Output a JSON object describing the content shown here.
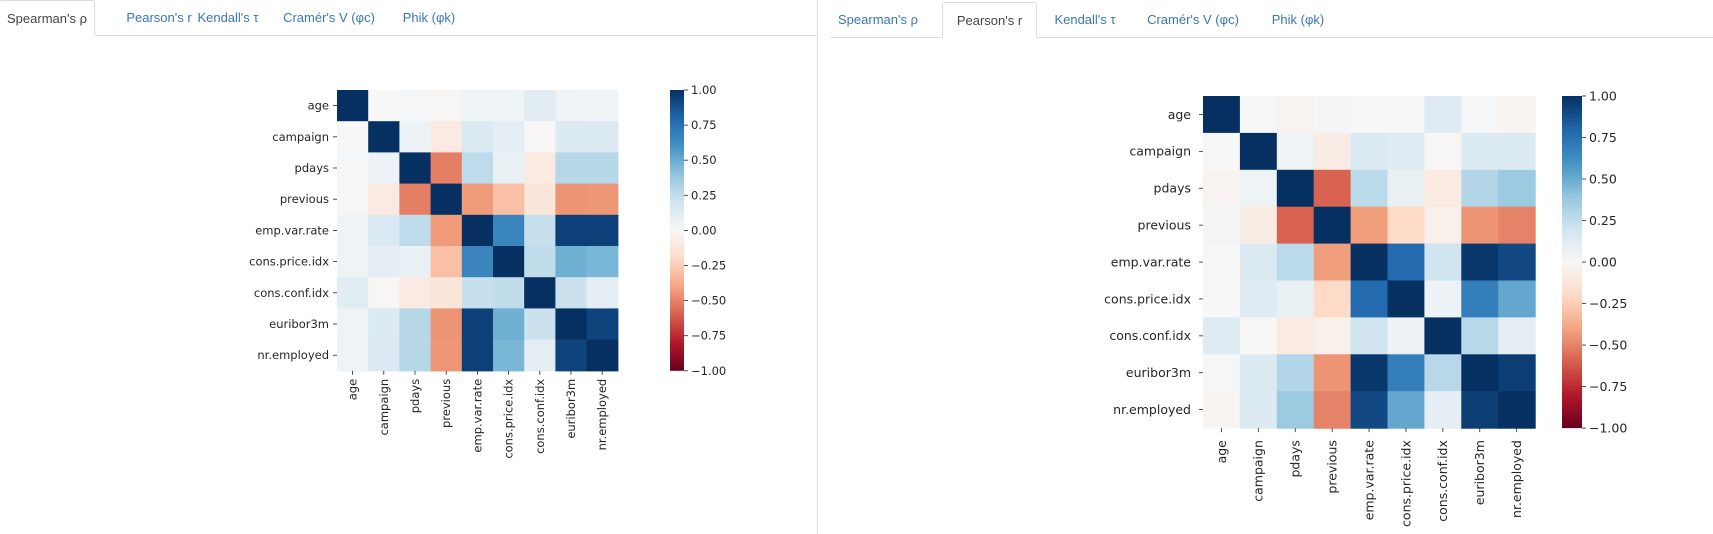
{
  "tabs": {
    "spearman": "Spearman's ρ",
    "pearson": "Pearson's r",
    "kendall": "Kendall's τ",
    "cramer": "Cramér's V (φc)",
    "phik": "Phik (φk)"
  },
  "colors": {
    "tab_link": "#3a76b5",
    "tab_active_text": "#444444",
    "colormap": "RdBu"
  },
  "chart_data": [
    {
      "type": "heatmap",
      "panel": "left",
      "active_tab": "spearman",
      "variables": [
        "age",
        "campaign",
        "pdays",
        "previous",
        "emp.var.rate",
        "cons.price.idx",
        "cons.conf.idx",
        "euribor3m",
        "nr.employed"
      ],
      "vmin": -1.0,
      "vmax": 1.0,
      "colorbar_ticks": [
        "1.00",
        "0.75",
        "0.50",
        "0.25",
        "0.00",
        "−0.25",
        "−0.50",
        "−0.75",
        "−1.00"
      ],
      "matrix": [
        [
          1.0,
          0.0,
          0.01,
          -0.01,
          0.05,
          0.05,
          0.11,
          0.05,
          0.04
        ],
        [
          0.0,
          1.0,
          0.06,
          -0.09,
          0.15,
          0.1,
          -0.01,
          0.14,
          0.15
        ],
        [
          0.01,
          0.06,
          1.0,
          -0.51,
          0.26,
          0.08,
          -0.09,
          0.29,
          0.29
        ],
        [
          -0.01,
          -0.09,
          -0.51,
          1.0,
          -0.43,
          -0.3,
          -0.12,
          -0.45,
          -0.44
        ],
        [
          0.05,
          0.15,
          0.26,
          -0.43,
          1.0,
          0.66,
          0.23,
          0.94,
          0.94
        ],
        [
          0.05,
          0.1,
          0.08,
          -0.3,
          0.66,
          1.0,
          0.25,
          0.49,
          0.46
        ],
        [
          0.11,
          -0.01,
          -0.09,
          -0.12,
          0.23,
          0.25,
          1.0,
          0.22,
          0.1
        ],
        [
          0.05,
          0.14,
          0.29,
          -0.45,
          0.94,
          0.49,
          0.22,
          1.0,
          0.93
        ],
        [
          0.04,
          0.15,
          0.29,
          -0.44,
          0.94,
          0.46,
          0.1,
          0.93,
          1.0
        ]
      ]
    },
    {
      "type": "heatmap",
      "panel": "right",
      "active_tab": "pearson",
      "variables": [
        "age",
        "campaign",
        "pdays",
        "previous",
        "emp.var.rate",
        "cons.price.idx",
        "cons.conf.idx",
        "euribor3m",
        "nr.employed"
      ],
      "vmin": -1.0,
      "vmax": 1.0,
      "colorbar_ticks": [
        "1.00",
        "0.75",
        "0.50",
        "0.25",
        "0.00",
        "−0.25",
        "−0.50",
        "−0.75",
        "−1.00"
      ],
      "matrix": [
        [
          1.0,
          0.0,
          -0.03,
          0.02,
          0.0,
          0.0,
          0.13,
          0.01,
          -0.02
        ],
        [
          0.0,
          1.0,
          0.05,
          -0.08,
          0.15,
          0.13,
          -0.01,
          0.14,
          0.14
        ],
        [
          -0.03,
          0.05,
          1.0,
          -0.59,
          0.27,
          0.08,
          -0.09,
          0.3,
          0.37
        ],
        [
          0.02,
          -0.08,
          -0.59,
          1.0,
          -0.42,
          -0.2,
          -0.05,
          -0.45,
          -0.5
        ],
        [
          0.0,
          0.15,
          0.27,
          -0.42,
          1.0,
          0.78,
          0.2,
          0.97,
          0.91
        ],
        [
          0.0,
          0.13,
          0.08,
          -0.2,
          0.78,
          1.0,
          0.06,
          0.69,
          0.52
        ],
        [
          0.13,
          -0.01,
          -0.09,
          -0.05,
          0.2,
          0.06,
          1.0,
          0.28,
          0.1
        ],
        [
          0.01,
          0.14,
          0.3,
          -0.45,
          0.97,
          0.69,
          0.28,
          1.0,
          0.95
        ],
        [
          -0.02,
          0.14,
          0.37,
          -0.5,
          0.91,
          0.52,
          0.1,
          0.95,
          1.0
        ]
      ]
    }
  ]
}
